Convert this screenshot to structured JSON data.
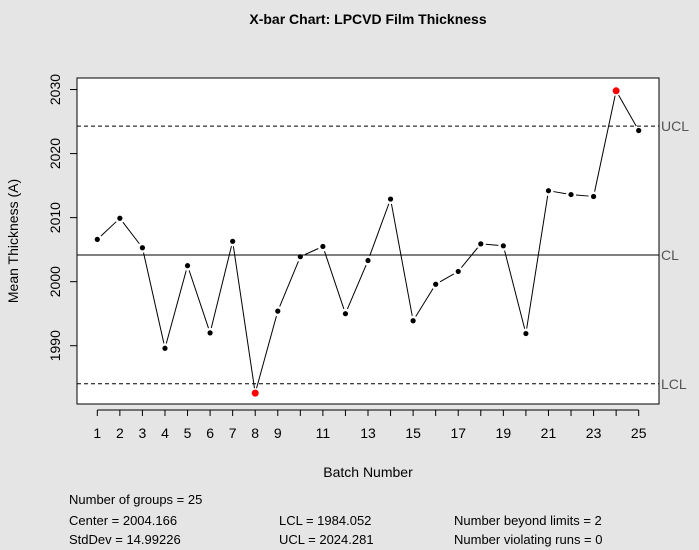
{
  "chart_data": {
    "type": "line",
    "title": "X-bar Chart: LPCVD Film Thickness",
    "xlabel": "Batch Number",
    "ylabel": "Mean Thickness (A)",
    "x": [
      1,
      2,
      3,
      4,
      5,
      6,
      7,
      8,
      9,
      10,
      11,
      12,
      13,
      14,
      15,
      16,
      17,
      18,
      19,
      20,
      21,
      22,
      23,
      24,
      25
    ],
    "series": [
      {
        "values": [
          2006.6,
          2009.9,
          2005.3,
          1989.6,
          2002.5,
          1992.0,
          2006.3,
          1982.6,
          1995.4,
          2003.9,
          2005.5,
          1995.0,
          2003.3,
          2012.9,
          1993.9,
          1999.6,
          2001.6,
          2005.9,
          2005.6,
          1991.9,
          2014.2,
          2013.6,
          2013.3,
          2029.8,
          2023.6
        ]
      }
    ],
    "out_of_control_points": [
      8,
      24
    ],
    "out_of_control_color": "#ff0000",
    "point_color": "#000000",
    "xlim": [
      0.1,
      25.9
    ],
    "ylim": [
      1980.9,
      2031.8
    ],
    "x_ticks": [
      1,
      2,
      3,
      4,
      5,
      6,
      7,
      8,
      9,
      11,
      13,
      15,
      17,
      19,
      21,
      23,
      25
    ],
    "y_ticks": [
      1990,
      2000,
      2010,
      2020,
      2030
    ],
    "control_lines": [
      {
        "label": "UCL",
        "value": 2024.281,
        "style": "dashed"
      },
      {
        "label": "CL",
        "value": 2004.166,
        "style": "solid"
      },
      {
        "label": "LCL",
        "value": 1984.052,
        "style": "dashed"
      }
    ],
    "grid": false,
    "legend": "none"
  },
  "stats": {
    "groups": "Number of groups = 25",
    "center": "Center = 2004.166",
    "stddev": "StdDev = 14.99226",
    "lcl": "LCL = 1984.052",
    "ucl": "UCL = 2024.281",
    "beyond": "Number beyond limits = 2",
    "runs": "Number violating runs = 0"
  }
}
